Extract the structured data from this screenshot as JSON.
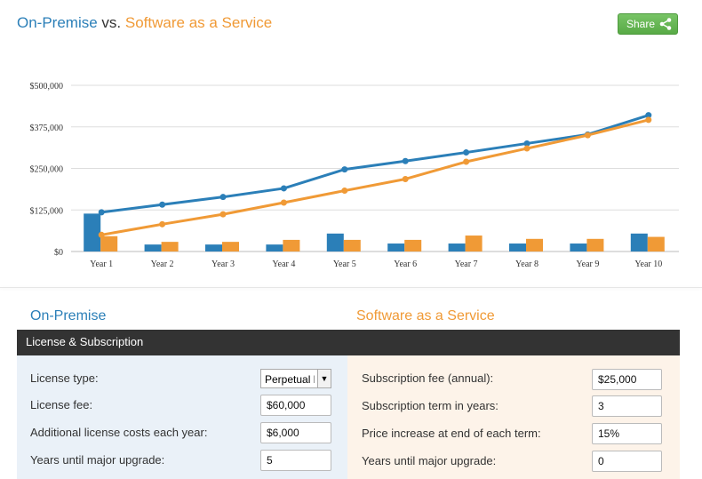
{
  "header": {
    "title_part1": "On-Premise",
    "title_vs": "vs.",
    "title_part2": "Software as a Service",
    "share_label": "Share",
    "share_icon": "share-icon"
  },
  "colors": {
    "onprem": "#2b7fb8",
    "saas": "#f09a36",
    "section_bar": "#333333",
    "share_button": "#66b554"
  },
  "chart_data": {
    "type": "bar+line",
    "categories": [
      "Year 1",
      "Year 2",
      "Year 3",
      "Year 4",
      "Year 5",
      "Year 6",
      "Year 7",
      "Year 8",
      "Year 9",
      "Year 10"
    ],
    "y_ticks": [
      "$0",
      "$125,000",
      "$250,000",
      "$375,000",
      "$500,000"
    ],
    "ylim": [
      0,
      500000
    ],
    "grid": true,
    "series": [
      {
        "kind": "bar",
        "color": "#2b7fb8",
        "values": [
          114000,
          21000,
          21000,
          21000,
          54000,
          24000,
          24000,
          24000,
          24000,
          54000
        ]
      },
      {
        "kind": "bar",
        "color": "#f09a36",
        "values": [
          46000,
          29000,
          29000,
          35000,
          35000,
          35000,
          48000,
          38000,
          38000,
          44000
        ]
      },
      {
        "kind": "line",
        "color": "#2b7fb8",
        "values": [
          118000,
          141000,
          164000,
          190000,
          247000,
          272000,
          298000,
          325000,
          352000,
          410000
        ]
      },
      {
        "kind": "line",
        "color": "#f09a36",
        "values": [
          50000,
          82000,
          112000,
          147000,
          183000,
          218000,
          270000,
          310000,
          350000,
          396000
        ]
      }
    ]
  },
  "onprem": {
    "heading": "On-Premise",
    "fields": [
      {
        "label": "License type:",
        "value": "Perpetual li"
      },
      {
        "label": "License fee:",
        "value": "$60,000"
      },
      {
        "label": "Additional license costs each year:",
        "value": "$6,000"
      },
      {
        "label": "Years until major upgrade:",
        "value": "5"
      }
    ]
  },
  "saas": {
    "heading": "Software as a Service",
    "fields": [
      {
        "label": "Subscription fee (annual):",
        "value": "$25,000"
      },
      {
        "label": "Subscription term in years:",
        "value": "3"
      },
      {
        "label": "Price increase at end of each term:",
        "value": "15%"
      },
      {
        "label": "Years until major upgrade:",
        "value": "0"
      }
    ]
  },
  "section": {
    "title": "License & Subscription"
  }
}
